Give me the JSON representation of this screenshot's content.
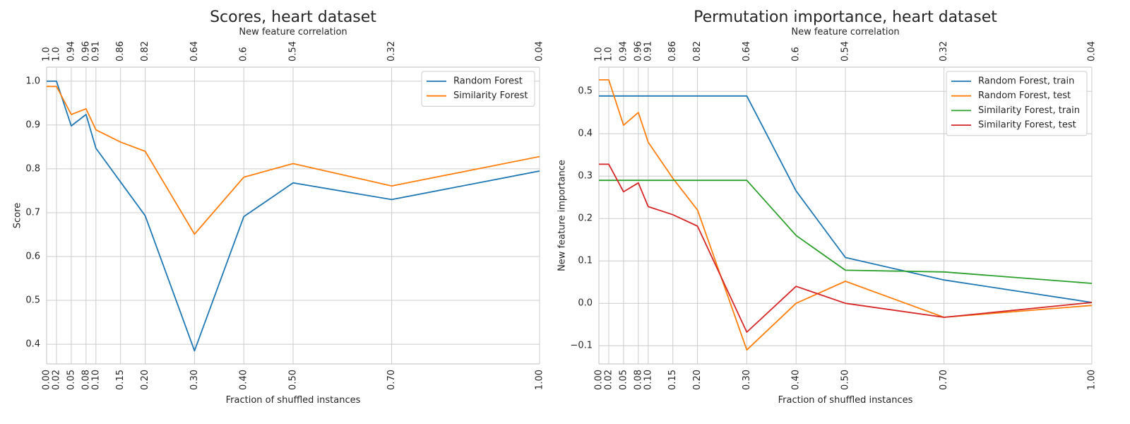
{
  "chart_data": [
    {
      "type": "line",
      "title": "Scores, heart dataset",
      "xlabel": "Fraction of shuffled instances",
      "ylabel": "Score",
      "top_xlabel": "New feature correlation",
      "x": [
        0.0,
        0.02,
        0.05,
        0.08,
        0.1,
        0.15,
        0.2,
        0.3,
        0.4,
        0.5,
        0.7,
        1.0
      ],
      "x_tick_labels": [
        "0.00",
        "0.02",
        "0.05",
        "0.08",
        "0.10",
        "0.15",
        "0.20",
        "0.30",
        "0.40",
        "0.50",
        "0.70",
        "1.00"
      ],
      "top_tick_labels": [
        "1.0",
        "1.0",
        "0.94",
        "0.96",
        "0.91",
        "0.86",
        "0.82",
        "0.64",
        "0.6",
        "0.54",
        "0.32",
        "0.04"
      ],
      "xlim": [
        0.0,
        1.0
      ],
      "ylim": [
        0.355,
        1.032
      ],
      "y_ticks": [
        0.4,
        0.5,
        0.6,
        0.7,
        0.8,
        0.9,
        1.0
      ],
      "y_tick_labels": [
        "0.4",
        "0.5",
        "0.6",
        "0.7",
        "0.8",
        "0.9",
        "1.0"
      ],
      "grid": true,
      "legend_position": "top-right",
      "series": [
        {
          "name": "Random Forest",
          "color": "#1f77b4",
          "values": [
            1.0,
            1.0,
            0.898,
            0.924,
            0.847,
            0.77,
            0.693,
            0.385,
            0.691,
            0.768,
            0.73,
            0.795
          ]
        },
        {
          "name": "Similarity Forest",
          "color": "#ff7f0e",
          "values": [
            0.988,
            0.988,
            0.924,
            0.937,
            0.889,
            0.861,
            0.84,
            0.651,
            0.781,
            0.812,
            0.761,
            0.828
          ]
        }
      ]
    },
    {
      "type": "line",
      "title": "Permutation importance, heart dataset",
      "xlabel": "Fraction of shuffled instances",
      "ylabel": "New feature importance",
      "top_xlabel": "New feature correlation",
      "x": [
        0.0,
        0.02,
        0.05,
        0.08,
        0.1,
        0.15,
        0.2,
        0.3,
        0.4,
        0.5,
        0.7,
        1.0
      ],
      "x_tick_labels": [
        "0.00",
        "0.02",
        "0.05",
        "0.08",
        "0.10",
        "0.15",
        "0.20",
        "0.30",
        "0.40",
        "0.50",
        "0.70",
        "1.00"
      ],
      "top_tick_labels": [
        "1.0",
        "1.0",
        "0.94",
        "0.96",
        "0.91",
        "0.86",
        "0.82",
        "0.64",
        "0.6",
        "0.54",
        "0.32",
        "0.04"
      ],
      "xlim": [
        0.0,
        1.0
      ],
      "ylim": [
        -0.143,
        0.557
      ],
      "y_ticks": [
        -0.1,
        0.0,
        0.1,
        0.2,
        0.3,
        0.4,
        0.5
      ],
      "y_tick_labels": [
        "−0.1",
        "0.0",
        "0.1",
        "0.2",
        "0.3",
        "0.4",
        "0.5"
      ],
      "grid": true,
      "legend_position": "top-right",
      "series": [
        {
          "name": "Random Forest, train",
          "color": "#1f77b4",
          "values": [
            0.489,
            0.489,
            0.489,
            0.489,
            0.489,
            0.489,
            0.489,
            0.489,
            0.265,
            0.108,
            0.055,
            0.002
          ]
        },
        {
          "name": "Random Forest, test",
          "color": "#ff7f0e",
          "values": [
            0.527,
            0.527,
            0.42,
            0.45,
            0.38,
            0.295,
            0.22,
            -0.11,
            0.0,
            0.052,
            -0.033,
            -0.005
          ]
        },
        {
          "name": "Similarity Forest, train",
          "color": "#2ca02c",
          "values": [
            0.29,
            0.29,
            0.29,
            0.29,
            0.29,
            0.29,
            0.29,
            0.29,
            0.16,
            0.078,
            0.074,
            0.047
          ]
        },
        {
          "name": "Similarity Forest, test",
          "color": "#d62728",
          "values": [
            0.328,
            0.328,
            0.263,
            0.284,
            0.228,
            0.209,
            0.182,
            -0.068,
            0.04,
            0.0,
            -0.033,
            0.002
          ]
        }
      ]
    }
  ]
}
